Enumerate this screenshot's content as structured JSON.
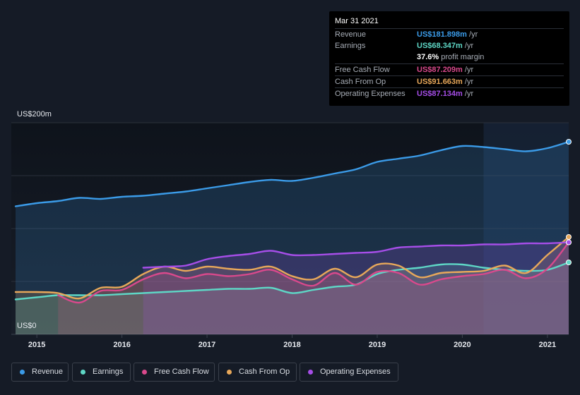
{
  "tooltip": {
    "date": "Mar 31 2021",
    "rows": [
      {
        "label": "Revenue",
        "value": "US$181.898m",
        "unit": "/yr",
        "color": "#3b9be8"
      },
      {
        "label": "Earnings",
        "value": "US$68.347m",
        "unit": "/yr",
        "color": "#5ed7c6"
      },
      {
        "label": "",
        "value": "37.6%",
        "unit": "profit margin",
        "color": "#ffffff"
      },
      {
        "label": "Free Cash Flow",
        "value": "US$87.209m",
        "unit": "/yr",
        "color": "#d9498c"
      },
      {
        "label": "Cash From Op",
        "value": "US$91.663m",
        "unit": "/yr",
        "color": "#e8a85a"
      },
      {
        "label": "Operating Expenses",
        "value": "US$87.134m",
        "unit": "/yr",
        "color": "#a64ee8"
      }
    ]
  },
  "legend": [
    {
      "label": "Revenue",
      "color": "#3b9be8"
    },
    {
      "label": "Earnings",
      "color": "#5ed7c6"
    },
    {
      "label": "Free Cash Flow",
      "color": "#d9498c"
    },
    {
      "label": "Cash From Op",
      "color": "#e8a85a"
    },
    {
      "label": "Operating Expenses",
      "color": "#a64ee8"
    }
  ],
  "chart_data": {
    "type": "area",
    "y_axis_labels": [
      "US$200m",
      "US$0"
    ],
    "ylim": [
      0,
      200
    ],
    "xlim": [
      2014.7,
      2021.25
    ],
    "x_ticks": [
      "2015",
      "2016",
      "2017",
      "2018",
      "2019",
      "2020",
      "2021"
    ],
    "grid": true,
    "legend_position": "bottom",
    "highlight_from": 2020.25,
    "series": [
      {
        "name": "Revenue",
        "color": "#3b9be8",
        "x": [
          2014.75,
          2015.0,
          2015.25,
          2015.5,
          2015.75,
          2016.0,
          2016.25,
          2016.5,
          2016.75,
          2017.0,
          2017.25,
          2017.5,
          2017.75,
          2018.0,
          2018.25,
          2018.5,
          2018.75,
          2019.0,
          2019.25,
          2019.5,
          2019.75,
          2020.0,
          2020.25,
          2020.5,
          2020.75,
          2021.0,
          2021.25
        ],
        "values": [
          121,
          124,
          126,
          129,
          128,
          130,
          131,
          133,
          135,
          138,
          141,
          144,
          146,
          145,
          148,
          152,
          156,
          163,
          166,
          169,
          174,
          178,
          177,
          175,
          173,
          176,
          182
        ]
      },
      {
        "name": "Earnings",
        "color": "#5ed7c6",
        "x": [
          2014.75,
          2015.0,
          2015.25,
          2015.5,
          2015.75,
          2016.0,
          2016.25,
          2016.5,
          2016.75,
          2017.0,
          2017.25,
          2017.5,
          2017.75,
          2018.0,
          2018.25,
          2018.5,
          2018.75,
          2019.0,
          2019.25,
          2019.5,
          2019.75,
          2020.0,
          2020.25,
          2020.5,
          2020.75,
          2021.0,
          2021.25
        ],
        "values": [
          33,
          35,
          37,
          37,
          37,
          38,
          39,
          40,
          41,
          42,
          43,
          43,
          44,
          39,
          42,
          45,
          47,
          57,
          61,
          63,
          66,
          66,
          63,
          61,
          60,
          61,
          68
        ]
      },
      {
        "name": "Free Cash Flow",
        "color": "#d9498c",
        "x": [
          2015.25,
          2015.5,
          2015.75,
          2016.0,
          2016.25,
          2016.5,
          2016.75,
          2017.0,
          2017.25,
          2017.5,
          2017.75,
          2018.0,
          2018.25,
          2018.5,
          2018.75,
          2019.0,
          2019.25,
          2019.5,
          2019.75,
          2020.0,
          2020.25,
          2020.5,
          2020.75,
          2021.0,
          2021.25
        ],
        "values": [
          37,
          30,
          41,
          42,
          52,
          58,
          53,
          57,
          55,
          57,
          61,
          52,
          46,
          58,
          47,
          59,
          58,
          47,
          52,
          55,
          57,
          61,
          53,
          62,
          87
        ]
      },
      {
        "name": "Cash From Op",
        "color": "#e8a85a",
        "x": [
          2014.75,
          2015.0,
          2015.25,
          2015.5,
          2015.75,
          2016.0,
          2016.25,
          2016.5,
          2016.75,
          2017.0,
          2017.25,
          2017.5,
          2017.75,
          2018.0,
          2018.25,
          2018.5,
          2018.75,
          2019.0,
          2019.25,
          2019.5,
          2019.75,
          2020.0,
          2020.25,
          2020.5,
          2020.75,
          2021.0,
          2021.25
        ],
        "values": [
          40,
          40,
          39,
          34,
          44,
          45,
          57,
          64,
          60,
          64,
          62,
          61,
          64,
          55,
          52,
          62,
          54,
          66,
          65,
          54,
          58,
          59,
          60,
          65,
          58,
          75,
          92
        ]
      },
      {
        "name": "Operating Expenses",
        "color": "#a64ee8",
        "x": [
          2016.25,
          2016.5,
          2016.75,
          2017.0,
          2017.25,
          2017.5,
          2017.75,
          2018.0,
          2018.25,
          2018.5,
          2018.75,
          2019.0,
          2019.25,
          2019.5,
          2019.75,
          2020.0,
          2020.25,
          2020.5,
          2020.75,
          2021.0,
          2021.25
        ],
        "values": [
          63,
          64,
          65,
          71,
          74,
          76,
          79,
          75,
          75,
          76,
          77,
          78,
          82,
          83,
          84,
          84,
          85,
          85,
          86,
          86,
          87
        ]
      }
    ]
  }
}
